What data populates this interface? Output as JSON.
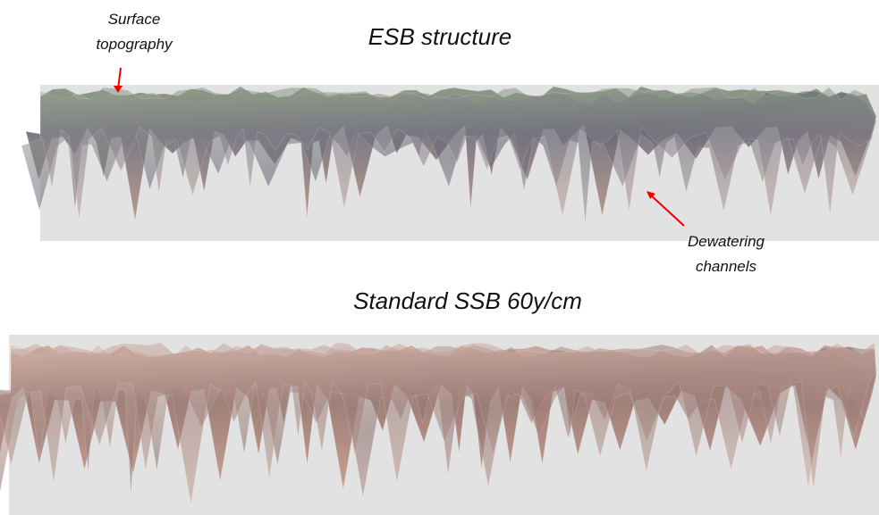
{
  "top_panel": {
    "title": "ESB structure",
    "annotations": [
      {
        "lines": [
          "Surface",
          "topography"
        ]
      },
      {
        "lines": [
          "Dewatering",
          "channels"
        ]
      }
    ]
  },
  "bottom_panel": {
    "title": "Standard SSB 60y/cm"
  }
}
